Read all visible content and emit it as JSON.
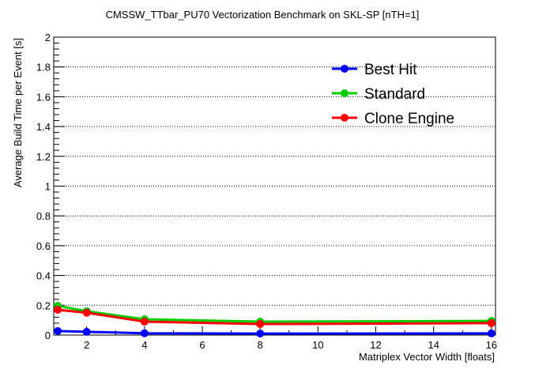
{
  "chart_data": {
    "type": "line",
    "title": "CMSSW_TTbar_PU70 Vectorization Benchmark on SKL-SP [nTH=1]",
    "xlabel": "Matriplex Vector Width [floats]",
    "ylabel": "Average Build Time per Event [s]",
    "xlim": [
      0.86,
      16.14
    ],
    "ylim": [
      0,
      2
    ],
    "xticks": [
      2,
      4,
      6,
      8,
      10,
      12,
      14,
      16
    ],
    "yticks": [
      0,
      0.2,
      0.4,
      0.6,
      0.8,
      1,
      1.2,
      1.4,
      1.6,
      1.8,
      2
    ],
    "ytick_labels": [
      "0",
      "0.2",
      "0.4",
      "0.6",
      "0.8",
      "1",
      "1.2",
      "1.4",
      "1.6",
      "1.8",
      "2"
    ],
    "grid": "horizontal dotted",
    "legend_position": "top-right",
    "x": [
      1,
      2,
      4,
      8,
      16
    ],
    "series": [
      {
        "name": "Best Hit",
        "color": "#0000ff",
        "values": [
          0.027,
          0.022,
          0.012,
          0.01,
          0.011
        ]
      },
      {
        "name": "Standard",
        "color": "#00cc00",
        "values": [
          0.196,
          0.16,
          0.106,
          0.09,
          0.095
        ]
      },
      {
        "name": "Clone Engine",
        "color": "#ff0000",
        "values": [
          0.17,
          0.15,
          0.09,
          0.074,
          0.08
        ]
      }
    ]
  }
}
